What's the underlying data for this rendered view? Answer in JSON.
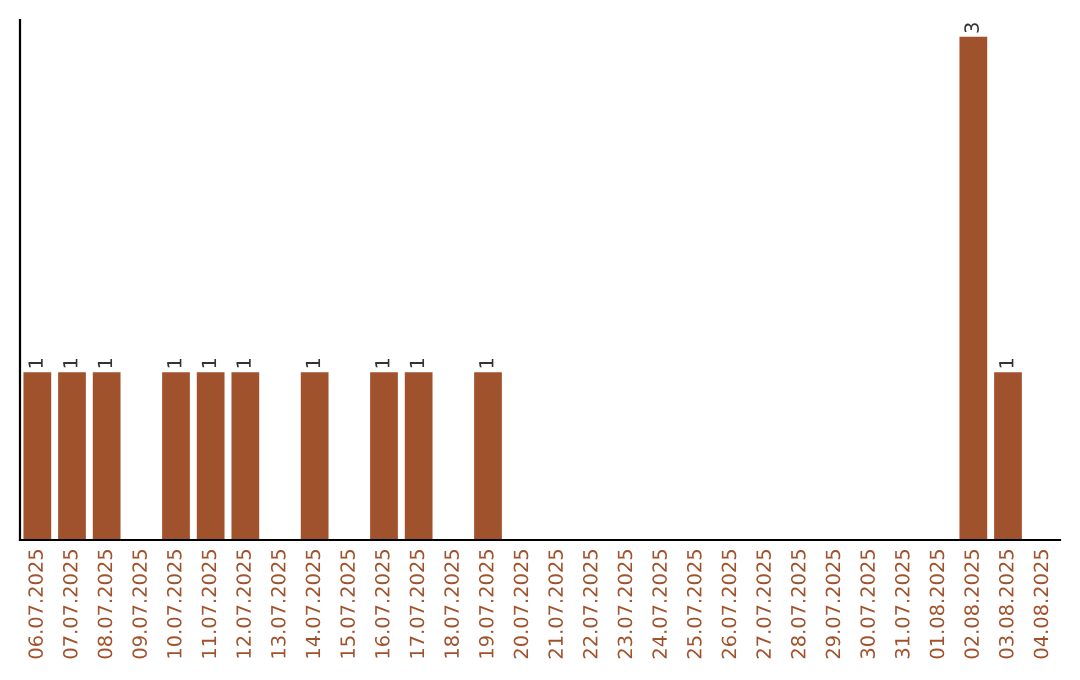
{
  "chart_data": {
    "type": "bar",
    "categories": [
      "06.07.2025",
      "07.07.2025",
      "08.07.2025",
      "09.07.2025",
      "10.07.2025",
      "11.07.2025",
      "12.07.2025",
      "13.07.2025",
      "14.07.2025",
      "15.07.2025",
      "16.07.2025",
      "17.07.2025",
      "18.07.2025",
      "19.07.2025",
      "20.07.2025",
      "21.07.2025",
      "22.07.2025",
      "23.07.2025",
      "24.07.2025",
      "25.07.2025",
      "26.07.2025",
      "27.07.2025",
      "28.07.2025",
      "29.07.2025",
      "30.07.2025",
      "31.07.2025",
      "01.08.2025",
      "02.08.2025",
      "03.08.2025",
      "04.08.2025"
    ],
    "values": [
      1,
      1,
      1,
      0,
      1,
      1,
      1,
      0,
      1,
      0,
      1,
      1,
      0,
      1,
      0,
      0,
      0,
      0,
      0,
      0,
      0,
      0,
      0,
      0,
      0,
      0,
      0,
      3,
      1,
      0
    ],
    "value_labels": [
      "1",
      "1",
      "1",
      null,
      "1",
      "1",
      "1",
      null,
      "1",
      null,
      "1",
      "1",
      null,
      "1",
      null,
      null,
      null,
      null,
      null,
      null,
      null,
      null,
      null,
      null,
      null,
      null,
      null,
      "3",
      "1",
      null
    ],
    "color": "#a0522d",
    "ylim": [
      0,
      3.1
    ],
    "tick_labels": "x",
    "grid": false,
    "legend": false
  }
}
